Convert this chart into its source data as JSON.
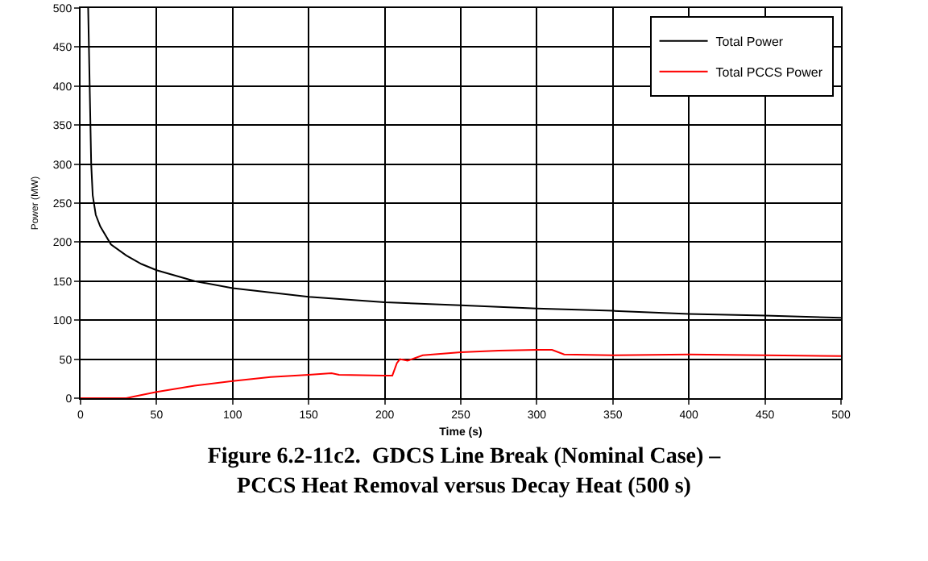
{
  "chart_data": {
    "type": "line",
    "title": "Figure 6.2-11c2.  GDCS Line Break (Nominal Case) –\nPCCS Heat Removal versus Decay Heat (500 s)",
    "xlabel": "Time (s)",
    "ylabel": "Power (MW)",
    "xlim": [
      0,
      500
    ],
    "xticks": [
      0,
      50,
      100,
      150,
      200,
      250,
      300,
      350,
      400,
      450,
      500
    ],
    "ylim": [
      0,
      500
    ],
    "yticks": [
      0,
      50,
      100,
      150,
      200,
      250,
      300,
      350,
      400,
      450,
      500
    ],
    "grid": true,
    "legend": "top right",
    "marker": "none",
    "line_style": "solid",
    "series": [
      {
        "name": "Total Power",
        "color": "#000000",
        "x": [
          5,
          6,
          7,
          8,
          10,
          13,
          20,
          30,
          40,
          50,
          75,
          100,
          150,
          200,
          250,
          300,
          350,
          400,
          450,
          500
        ],
        "values": [
          500,
          400,
          300,
          260,
          235,
          220,
          197,
          183,
          172,
          164,
          150,
          141,
          130,
          123,
          119,
          115,
          112,
          108,
          106,
          103
        ]
      },
      {
        "name": "Total PCCS Power",
        "color": "#ff0000",
        "x": [
          0,
          30,
          35,
          50,
          75,
          100,
          125,
          150,
          165,
          170,
          200,
          205,
          208,
          210,
          215,
          225,
          250,
          275,
          300,
          310,
          318,
          350,
          400,
          450,
          500
        ],
        "values": [
          0,
          0,
          2,
          8,
          16,
          22,
          27,
          30,
          32,
          30,
          29,
          29,
          45,
          50,
          48,
          55,
          59,
          61,
          62,
          62,
          56,
          55,
          56,
          55,
          54
        ]
      }
    ]
  }
}
